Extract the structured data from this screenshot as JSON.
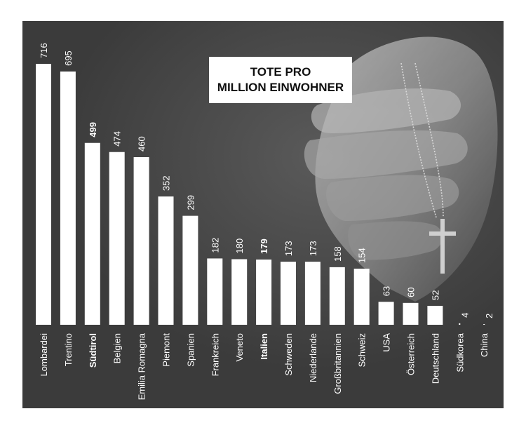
{
  "title_lines": [
    "TOTE PRO",
    "MILLION EINWOHNER"
  ],
  "colors": {
    "background": "#3b3b3b",
    "bar": "#ffffff",
    "text": "#ffffff"
  },
  "chart_data": {
    "type": "bar",
    "title": "TOTE PRO MILLION EINWOHNER",
    "categories": [
      "Lombardei",
      "Trentino",
      "Südtirol",
      "Belgien",
      "Emilia Romagna",
      "Piemont",
      "Spanien",
      "Frankreich",
      "Veneto",
      "Italien",
      "Schweden",
      "Niederlande",
      "Großbritannien",
      "Schweiz",
      "USA",
      "Österreich",
      "Deutschland",
      "Südkorea",
      "China"
    ],
    "values": [
      716,
      695,
      499,
      474,
      460,
      352,
      299,
      182,
      180,
      179,
      173,
      173,
      158,
      154,
      63,
      60,
      52,
      4,
      2
    ],
    "highlighted": [
      "Südtirol",
      "Italien"
    ],
    "ylim": [
      0,
      716
    ],
    "grid": false,
    "legend": "none"
  }
}
